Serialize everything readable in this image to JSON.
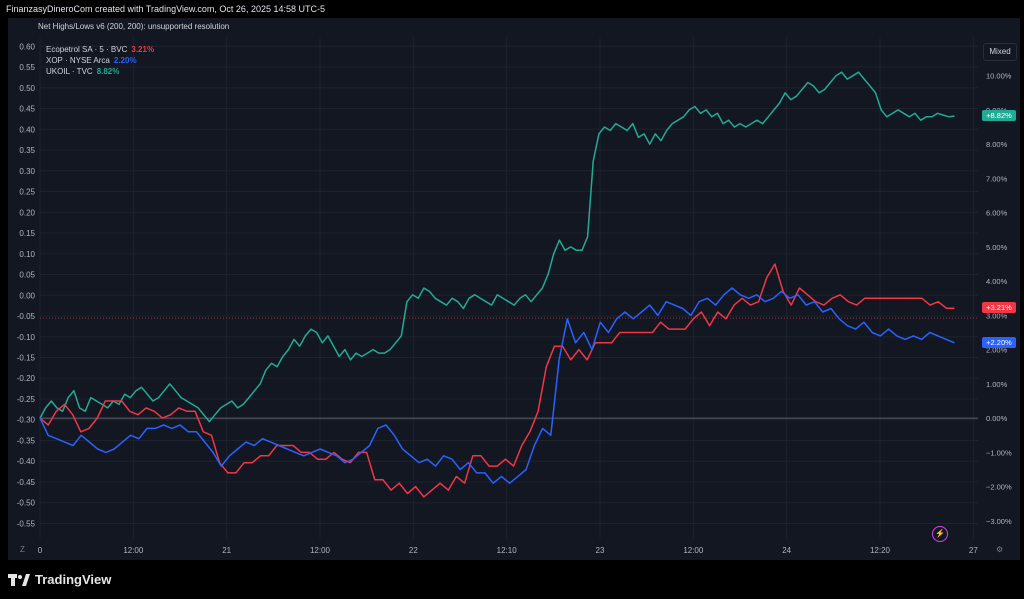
{
  "header": {
    "caption": "FinanzasyDineroCom created with TradingView.com, Oct 26, 2025 14:58 UTC-5"
  },
  "indicator_title": "Net Highs/Lows v6 (200, 200): unsupported resolution",
  "legend": [
    {
      "name": "Ecopetrol SA · 5 · BVC",
      "value": "3.21%",
      "color": "#f23645"
    },
    {
      "name": "XOP · NYSE Arca",
      "value": "2.20%",
      "color": "#2962ff"
    },
    {
      "name": "UKOIL · TVC",
      "value": "8.82%",
      "color": "#22ab94"
    }
  ],
  "scale_mode": "Mixed",
  "footer": {
    "brand": "TradingView"
  },
  "controls": {
    "left_corner": "Z",
    "right_corner": "⚙"
  },
  "icons": {
    "bolt": "lightning-icon",
    "logo": "tradingview-logo-icon"
  },
  "chart_data": {
    "type": "line",
    "left_axis": {
      "ticks": [
        0.6,
        0.55,
        0.5,
        0.45,
        0.4,
        0.35,
        0.3,
        0.25,
        0.2,
        0.15,
        0.1,
        0.05,
        0.0,
        -0.05,
        -0.1,
        -0.15,
        -0.2,
        -0.25,
        -0.3,
        -0.35,
        -0.4,
        -0.45,
        -0.5,
        -0.55
      ],
      "range": [
        -0.585,
        0.62
      ]
    },
    "right_axis": {
      "unit": "%",
      "ticks": [
        10,
        9,
        8,
        7,
        6,
        5,
        4,
        3,
        2,
        1,
        0,
        -1,
        -2,
        -3
      ],
      "labels": [
        "10.00%",
        "9.00%",
        "8.00%",
        "7.00%",
        "6.00%",
        "5.00%",
        "4.00%",
        "3.00%",
        "2.00%",
        "1.00%",
        "0.00%",
        "−1.00%",
        "−2.00%",
        "−3.00%"
      ],
      "range": [
        -3.5,
        11.1
      ]
    },
    "x_axis": {
      "labels": [
        "0",
        "12:00",
        "21",
        "12:00",
        "22",
        "12:10",
        "23",
        "12:00",
        "24",
        "12:20",
        "27"
      ],
      "label_index": [
        0,
        20,
        40,
        60,
        80,
        100,
        120,
        140,
        160,
        180,
        200
      ],
      "max_index": 201
    },
    "zero_line_percent": 0,
    "ecopetrol_ref_value": -0.055,
    "series": [
      {
        "name": "UKOIL · TVC",
        "color": "#22ab94",
        "last_label": "+8.82%",
        "values": [
          0.0,
          0.3,
          0.5,
          0.3,
          0.2,
          0.6,
          0.8,
          0.3,
          0.2,
          0.6,
          0.5,
          0.4,
          0.3,
          0.5,
          0.4,
          0.7,
          0.6,
          0.8,
          0.9,
          0.7,
          0.5,
          0.6,
          0.8,
          1.0,
          0.8,
          0.6,
          0.5,
          0.4,
          0.3,
          0.1,
          -0.1,
          0.1,
          0.3,
          0.4,
          0.5,
          0.3,
          0.4,
          0.6,
          0.8,
          1.0,
          1.4,
          1.6,
          1.5,
          1.8,
          2.0,
          2.3,
          2.1,
          2.4,
          2.6,
          2.5,
          2.2,
          2.4,
          2.1,
          1.8,
          2.0,
          1.7,
          1.9,
          1.8,
          1.9,
          2.0,
          1.9,
          1.9,
          2.0,
          2.2,
          2.4,
          3.4,
          3.6,
          3.5,
          3.8,
          3.7,
          3.5,
          3.4,
          3.3,
          3.5,
          3.4,
          3.2,
          3.5,
          3.6,
          3.5,
          3.4,
          3.3,
          3.6,
          3.5,
          3.4,
          3.3,
          3.5,
          3.6,
          3.4,
          3.6,
          3.8,
          4.2,
          4.8,
          5.2,
          4.9,
          5.0,
          4.9,
          4.9,
          5.3,
          7.5,
          8.3,
          8.5,
          8.4,
          8.6,
          8.5,
          8.4,
          8.6,
          8.2,
          8.3,
          8.0,
          8.3,
          8.1,
          8.4,
          8.6,
          8.7,
          8.8,
          9.0,
          9.1,
          8.9,
          9.0,
          8.8,
          8.9,
          8.6,
          8.7,
          8.5,
          8.6,
          8.5,
          8.6,
          8.7,
          8.6,
          8.8,
          9.0,
          9.2,
          9.5,
          9.3,
          9.4,
          9.6,
          9.8,
          9.7,
          9.5,
          9.6,
          9.8,
          10.0,
          10.1,
          9.9,
          10.0,
          10.1,
          9.9,
          9.7,
          9.5,
          9.0,
          8.8,
          8.9,
          9.0,
          8.9,
          8.8,
          8.9,
          8.7,
          8.8,
          8.8,
          8.9,
          8.85,
          8.8,
          8.82
        ]
      },
      {
        "name": "Ecopetrol SA · 5 · BVC",
        "color": "#f23645",
        "last_label": "+3.21%",
        "values": [
          0.0,
          -0.2,
          0.2,
          0.4,
          0.1,
          -0.4,
          -0.3,
          0.0,
          0.5,
          0.5,
          0.5,
          0.2,
          0.1,
          0.3,
          0.2,
          0.0,
          0.1,
          0.3,
          0.2,
          0.2,
          -0.4,
          -0.5,
          -1.3,
          -1.6,
          -1.6,
          -1.3,
          -1.3,
          -1.1,
          -1.1,
          -0.8,
          -0.8,
          -0.8,
          -1.0,
          -1.0,
          -1.2,
          -1.2,
          -1.0,
          -1.2,
          -1.3,
          -1.0,
          -1.0,
          -1.8,
          -1.8,
          -2.1,
          -1.9,
          -2.2,
          -2.0,
          -2.3,
          -2.1,
          -1.9,
          -2.1,
          -1.7,
          -1.9,
          -1.1,
          -1.1,
          -1.4,
          -1.4,
          -1.2,
          -1.4,
          -0.8,
          -0.4,
          0.2,
          1.5,
          2.1,
          2.1,
          1.7,
          2.0,
          1.7,
          2.2,
          2.2,
          2.2,
          2.5,
          2.5,
          2.5,
          2.5,
          2.5,
          2.8,
          2.6,
          2.6,
          2.6,
          2.9,
          3.1,
          2.7,
          3.1,
          2.9,
          3.3,
          3.5,
          3.3,
          3.4,
          4.1,
          4.5,
          3.7,
          3.3,
          3.8,
          3.6,
          3.4,
          3.3,
          3.5,
          3.6,
          3.4,
          3.3,
          3.5,
          3.5,
          3.5,
          3.5,
          3.5,
          3.5,
          3.5,
          3.5,
          3.3,
          3.4,
          3.21,
          3.21
        ]
      },
      {
        "name": "XOP · NYSE Arca",
        "color": "#2962ff",
        "last_label": "+2.20%",
        "values": [
          0.0,
          -0.5,
          -0.6,
          -0.7,
          -0.8,
          -0.5,
          -0.7,
          -0.9,
          -1.0,
          -0.9,
          -0.7,
          -0.5,
          -0.6,
          -0.3,
          -0.3,
          -0.2,
          -0.3,
          -0.2,
          -0.4,
          -0.4,
          -0.7,
          -1.0,
          -1.4,
          -1.1,
          -0.9,
          -0.7,
          -0.8,
          -0.6,
          -0.7,
          -0.8,
          -0.9,
          -1.0,
          -1.1,
          -1.0,
          -0.9,
          -1.0,
          -1.1,
          -1.3,
          -1.2,
          -1.0,
          -0.8,
          -0.3,
          -0.2,
          -0.5,
          -0.9,
          -1.1,
          -1.3,
          -1.2,
          -1.4,
          -1.1,
          -1.2,
          -1.5,
          -1.3,
          -1.6,
          -1.6,
          -1.9,
          -1.7,
          -1.9,
          -1.7,
          -1.5,
          -0.8,
          -0.3,
          -0.5,
          1.7,
          2.9,
          2.2,
          2.5,
          2.0,
          2.8,
          2.5,
          2.9,
          3.1,
          2.9,
          3.1,
          3.3,
          3.0,
          3.4,
          3.3,
          3.2,
          3.0,
          3.4,
          3.5,
          3.3,
          3.6,
          3.8,
          3.6,
          3.5,
          3.6,
          3.4,
          3.5,
          3.7,
          3.5,
          3.6,
          3.3,
          3.4,
          3.1,
          3.2,
          2.9,
          2.7,
          2.6,
          2.8,
          2.5,
          2.4,
          2.6,
          2.4,
          2.3,
          2.4,
          2.3,
          2.5,
          2.4,
          2.3,
          2.2
        ]
      }
    ]
  }
}
